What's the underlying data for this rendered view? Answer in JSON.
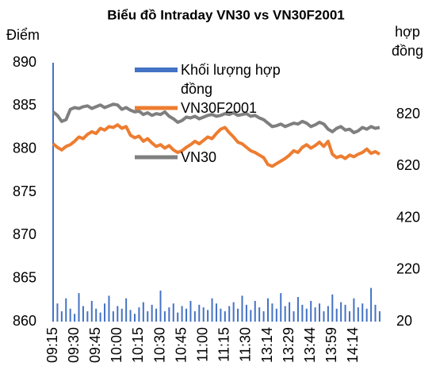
{
  "chart_data": {
    "type": "combo",
    "title": "Biểu đồ Intraday VN30 vs VN30F2001",
    "y_label": "Điểm",
    "y2_label": "hợp đồng",
    "categories": [
      "09:15",
      null,
      null,
      null,
      null,
      "09:30",
      null,
      null,
      null,
      null,
      "09:45",
      null,
      null,
      null,
      null,
      "10:00",
      null,
      null,
      null,
      null,
      "10:15",
      null,
      null,
      null,
      null,
      "10:30",
      null,
      null,
      null,
      null,
      "10:45",
      null,
      null,
      null,
      null,
      "11:00",
      null,
      null,
      null,
      null,
      "11:15",
      null,
      null,
      null,
      null,
      "11:30",
      null,
      null,
      null,
      null,
      "13:14",
      null,
      null,
      null,
      null,
      "13:29",
      null,
      null,
      null,
      null,
      "13:44",
      null,
      null,
      null,
      null,
      "13:59",
      null,
      null,
      null,
      null,
      "14:14",
      null,
      null,
      null,
      null,
      null,
      null
    ],
    "ylim": [
      860,
      890
    ],
    "yticks": [
      860,
      865,
      870,
      875,
      880,
      885,
      890
    ],
    "y2lim": [
      20,
      1020
    ],
    "y2ticks": [
      20,
      220,
      420,
      620,
      820
    ],
    "legend": "top",
    "series": [
      {
        "name": "Khối lượng hợp đồng",
        "type": "bar",
        "axis": "y2",
        "color": "#4472c4",
        "values": [
          1020,
          90,
          60,
          110,
          70,
          50,
          130,
          80,
          60,
          100,
          70,
          55,
          90,
          120,
          60,
          80,
          70,
          110,
          65,
          50,
          75,
          95,
          60,
          85,
          70,
          140,
          60,
          75,
          90,
          55,
          80,
          70,
          100,
          60,
          85,
          75,
          65,
          110,
          90,
          70,
          60,
          80,
          95,
          70,
          120,
          85,
          65,
          100,
          75,
          60,
          110,
          90,
          70,
          130,
          80,
          95,
          60,
          115,
          85,
          70,
          100,
          75,
          90,
          60,
          80,
          125,
          70,
          95,
          85,
          60,
          110,
          75,
          90,
          70,
          150,
          85,
          60
        ]
      },
      {
        "name": "VN30F2001",
        "type": "line",
        "color": "#ed7d31",
        "values": [
          880.6,
          880.2,
          879.9,
          880.3,
          880.5,
          880.9,
          881.4,
          881.2,
          881.7,
          882.0,
          881.8,
          882.4,
          882.2,
          882.6,
          882.5,
          882.8,
          882.4,
          882.6,
          881.6,
          881.3,
          881.5,
          880.9,
          881.2,
          880.7,
          880.3,
          880.5,
          880.1,
          880.4,
          879.9,
          879.6,
          879.8,
          880.2,
          880.5,
          880.9,
          880.6,
          881.0,
          881.4,
          881.2,
          881.8,
          882.3,
          882.5,
          881.9,
          881.4,
          880.8,
          880.6,
          880.2,
          879.8,
          879.6,
          879.3,
          879.0,
          878.2,
          878.0,
          878.3,
          878.6,
          878.9,
          879.3,
          879.8,
          879.6,
          880.2,
          880.5,
          880.1,
          880.4,
          880.8,
          880.3,
          880.9,
          879.4,
          879.0,
          879.2,
          878.9,
          879.3,
          879.1,
          879.4,
          879.6,
          880.0,
          879.5,
          879.7,
          879.4
        ]
      },
      {
        "name": "VN30",
        "type": "line",
        "color": "#7f7f7f",
        "values": [
          884.3,
          883.9,
          883.2,
          883.4,
          884.6,
          884.8,
          884.7,
          884.9,
          885.0,
          884.7,
          884.9,
          885.1,
          884.8,
          885.0,
          885.2,
          885.1,
          884.6,
          884.8,
          884.5,
          884.3,
          884.4,
          884.0,
          884.2,
          883.9,
          884.1,
          884.0,
          884.3,
          883.8,
          883.5,
          883.1,
          883.3,
          883.7,
          883.6,
          883.8,
          883.5,
          883.7,
          883.9,
          884.0,
          883.8,
          883.9,
          884.1,
          884.0,
          884.2,
          883.9,
          884.0,
          884.1,
          883.8,
          883.9,
          883.6,
          883.4,
          883.0,
          882.6,
          882.7,
          882.9,
          882.6,
          882.8,
          883.0,
          882.9,
          883.2,
          883.0,
          882.6,
          882.8,
          883.1,
          882.9,
          882.3,
          882.0,
          882.4,
          882.6,
          882.2,
          882.3,
          881.9,
          882.1,
          882.5,
          882.3,
          882.6,
          882.4,
          882.5
        ]
      }
    ]
  }
}
